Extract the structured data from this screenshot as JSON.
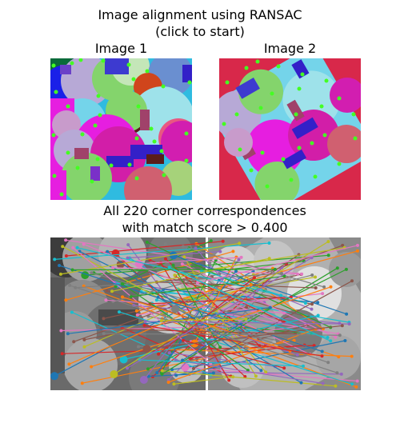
{
  "figure": {
    "title_line1": "Image alignment using RANSAC",
    "title_line2": "(click to start)",
    "image1_label": "Image 1",
    "image2_label": "Image 2",
    "matches_line1": "All 220 corner correspondences",
    "matches_line2": "with match score > 0.400"
  },
  "colors": {
    "corner_marker": "#44ff22",
    "image1_background": "#2fbbe0",
    "image2_background": "#d8284a",
    "gray_background": "#555555"
  },
  "chart_data": {
    "type": "scatter",
    "correspondence_count": 220,
    "match_score_threshold": 0.4
  }
}
